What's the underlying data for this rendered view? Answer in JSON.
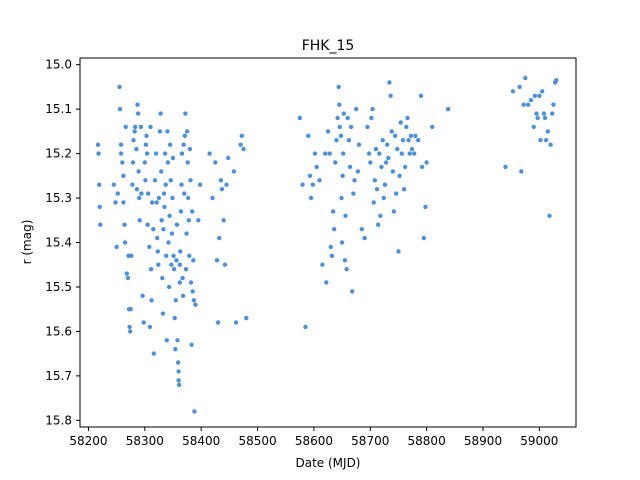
{
  "chart_data": {
    "type": "scatter",
    "title": "FHK_15",
    "xlabel": "Date (MJD)",
    "ylabel": "r (mag)",
    "xlim": [
      58185,
      59065
    ],
    "ylim": [
      15.815,
      14.985
    ],
    "y_inverted": true,
    "grid": false,
    "marker_color": "#4a90e2",
    "x_ticks": [
      58200,
      58300,
      58400,
      58500,
      58600,
      58700,
      58800,
      58900,
      59000
    ],
    "y_ticks": [
      15.0,
      15.1,
      15.2,
      15.3,
      15.4,
      15.5,
      15.6,
      15.7,
      15.8
    ],
    "x_tick_labels": [
      "58200",
      "58300",
      "58400",
      "58500",
      "58600",
      "58700",
      "58800",
      "58900",
      "59000"
    ],
    "y_tick_labels": [
      "15.0",
      "15.1",
      "15.2",
      "15.3",
      "15.4",
      "15.5",
      "15.6",
      "15.7",
      "15.8"
    ],
    "points": [
      [
        58217,
        15.18
      ],
      [
        58218,
        15.2
      ],
      [
        58219,
        15.27
      ],
      [
        58220,
        15.32
      ],
      [
        58221,
        15.36
      ],
      [
        58245,
        15.27
      ],
      [
        58248,
        15.31
      ],
      [
        58250,
        15.41
      ],
      [
        58252,
        15.29
      ],
      [
        58255,
        15.05
      ],
      [
        58256,
        15.1
      ],
      [
        58258,
        15.18
      ],
      [
        58258,
        15.2
      ],
      [
        58260,
        15.22
      ],
      [
        58262,
        15.25
      ],
      [
        58262,
        15.31
      ],
      [
        58264,
        15.36
      ],
      [
        58265,
        15.4
      ],
      [
        58266,
        15.14
      ],
      [
        58268,
        15.47
      ],
      [
        58270,
        15.48
      ],
      [
        58271,
        15.43
      ],
      [
        58272,
        15.55
      ],
      [
        58273,
        15.59
      ],
      [
        58274,
        15.6
      ],
      [
        58275,
        15.55
      ],
      [
        58276,
        15.43
      ],
      [
        58278,
        15.27
      ],
      [
        58279,
        15.22
      ],
      [
        58280,
        15.17
      ],
      [
        58282,
        15.15
      ],
      [
        58283,
        15.14
      ],
      [
        58285,
        15.19
      ],
      [
        58286,
        15.28
      ],
      [
        58287,
        15.09
      ],
      [
        58288,
        15.11
      ],
      [
        58289,
        15.24
      ],
      [
        58290,
        15.3
      ],
      [
        58291,
        15.35
      ],
      [
        58293,
        15.14
      ],
      [
        58294,
        15.29
      ],
      [
        58296,
        15.52
      ],
      [
        58298,
        15.58
      ],
      [
        58300,
        15.22
      ],
      [
        58301,
        15.26
      ],
      [
        58302,
        15.18
      ],
      [
        58303,
        15.16
      ],
      [
        58304,
        15.2
      ],
      [
        58305,
        15.36
      ],
      [
        58306,
        15.29
      ],
      [
        58308,
        15.41
      ],
      [
        58309,
        15.59
      ],
      [
        58310,
        15.14
      ],
      [
        58311,
        15.46
      ],
      [
        58312,
        15.53
      ],
      [
        58313,
        15.31
      ],
      [
        58315,
        15.37
      ],
      [
        58316,
        15.65
      ],
      [
        58318,
        15.26
      ],
      [
        58320,
        15.2
      ],
      [
        58321,
        15.31
      ],
      [
        58322,
        15.39
      ],
      [
        58323,
        15.42
      ],
      [
        58324,
        15.45
      ],
      [
        58325,
        15.3
      ],
      [
        58327,
        15.15
      ],
      [
        58328,
        15.11
      ],
      [
        58329,
        15.24
      ],
      [
        58330,
        15.35
      ],
      [
        58331,
        15.48
      ],
      [
        58332,
        15.56
      ],
      [
        58333,
        15.37
      ],
      [
        58334,
        15.29
      ],
      [
        58335,
        15.32
      ],
      [
        58336,
        15.2
      ],
      [
        58337,
        15.27
      ],
      [
        58338,
        15.43
      ],
      [
        58339,
        15.62
      ],
      [
        58340,
        15.15
      ],
      [
        58341,
        15.22
      ],
      [
        58342,
        15.4
      ],
      [
        58343,
        15.5
      ],
      [
        58344,
        15.34
      ],
      [
        58345,
        15.18
      ],
      [
        58346,
        15.26
      ],
      [
        58347,
        15.45
      ],
      [
        58348,
        15.38
      ],
      [
        58349,
        15.3
      ],
      [
        58350,
        15.21
      ],
      [
        58351,
        15.43
      ],
      [
        58352,
        15.46
      ],
      [
        58353,
        15.57
      ],
      [
        58354,
        15.64
      ],
      [
        58355,
        15.53
      ],
      [
        58356,
        15.44
      ],
      [
        58357,
        15.36
      ],
      [
        58358,
        15.62
      ],
      [
        58359,
        15.67
      ],
      [
        58360,
        15.69
      ],
      [
        58360,
        15.71
      ],
      [
        58361,
        15.72
      ],
      [
        58362,
        15.45
      ],
      [
        58362,
        15.49
      ],
      [
        58363,
        15.42
      ],
      [
        58364,
        15.33
      ],
      [
        58365,
        15.27
      ],
      [
        58366,
        15.2
      ],
      [
        58367,
        15.48
      ],
      [
        58368,
        15.52
      ],
      [
        58369,
        15.18
      ],
      [
        58370,
        15.29
      ],
      [
        58371,
        15.16
      ],
      [
        58372,
        15.11
      ],
      [
        58373,
        15.46
      ],
      [
        58374,
        15.38
      ],
      [
        58375,
        15.15
      ],
      [
        58376,
        15.22
      ],
      [
        58377,
        15.3
      ],
      [
        58378,
        15.35
      ],
      [
        58379,
        15.43
      ],
      [
        58380,
        15.19
      ],
      [
        58381,
        15.26
      ],
      [
        58382,
        15.49
      ],
      [
        58383,
        15.63
      ],
      [
        58384,
        15.33
      ],
      [
        58385,
        15.51
      ],
      [
        58386,
        15.44
      ],
      [
        58387,
        15.53
      ],
      [
        58388,
        15.78
      ],
      [
        58390,
        15.54
      ],
      [
        58395,
        15.35
      ],
      [
        58398,
        15.27
      ],
      [
        58415,
        15.2
      ],
      [
        58420,
        15.3
      ],
      [
        58425,
        15.22
      ],
      [
        58428,
        15.44
      ],
      [
        58430,
        15.58
      ],
      [
        58432,
        15.39
      ],
      [
        58435,
        15.26
      ],
      [
        58437,
        15.28
      ],
      [
        58440,
        15.35
      ],
      [
        58442,
        15.45
      ],
      [
        58445,
        15.27
      ],
      [
        58448,
        15.21
      ],
      [
        58458,
        15.24
      ],
      [
        58462,
        15.58
      ],
      [
        58470,
        15.18
      ],
      [
        58472,
        15.16
      ],
      [
        58475,
        15.19
      ],
      [
        58480,
        15.57
      ],
      [
        58575,
        15.12
      ],
      [
        58580,
        15.27
      ],
      [
        58585,
        15.59
      ],
      [
        58590,
        15.16
      ],
      [
        58593,
        15.25
      ],
      [
        58595,
        15.3
      ],
      [
        58598,
        15.27
      ],
      [
        58602,
        15.2
      ],
      [
        58605,
        15.23
      ],
      [
        58610,
        15.26
      ],
      [
        58615,
        15.45
      ],
      [
        58620,
        15.2
      ],
      [
        58622,
        15.49
      ],
      [
        58625,
        15.15
      ],
      [
        58628,
        15.2
      ],
      [
        58630,
        15.41
      ],
      [
        58632,
        15.43
      ],
      [
        58634,
        15.33
      ],
      [
        58636,
        15.37
      ],
      [
        58638,
        15.22
      ],
      [
        58640,
        15.17
      ],
      [
        58642,
        15.12
      ],
      [
        58644,
        15.05
      ],
      [
        58645,
        15.09
      ],
      [
        58646,
        15.14
      ],
      [
        58648,
        15.16
      ],
      [
        58649,
        15.3
      ],
      [
        58650,
        15.4
      ],
      [
        58651,
        15.25
      ],
      [
        58652,
        15.2
      ],
      [
        58653,
        15.11
      ],
      [
        58655,
        15.44
      ],
      [
        58656,
        15.34
      ],
      [
        58658,
        15.46
      ],
      [
        58660,
        15.12
      ],
      [
        58662,
        15.17
      ],
      [
        58664,
        15.23
      ],
      [
        58666,
        15.14
      ],
      [
        58668,
        15.51
      ],
      [
        58670,
        15.29
      ],
      [
        58672,
        15.26
      ],
      [
        58675,
        15.1
      ],
      [
        58678,
        15.24
      ],
      [
        58680,
        15.18
      ],
      [
        58685,
        15.37
      ],
      [
        58690,
        15.39
      ],
      [
        58695,
        15.14
      ],
      [
        58698,
        15.2
      ],
      [
        58700,
        15.22
      ],
      [
        58702,
        15.12
      ],
      [
        58704,
        15.1
      ],
      [
        58706,
        15.31
      ],
      [
        58708,
        15.26
      ],
      [
        58710,
        15.19
      ],
      [
        58712,
        15.28
      ],
      [
        58714,
        15.36
      ],
      [
        58716,
        15.2
      ],
      [
        58718,
        15.34
      ],
      [
        58720,
        15.23
      ],
      [
        58722,
        15.17
      ],
      [
        58724,
        15.3
      ],
      [
        58726,
        15.27
      ],
      [
        58728,
        15.22
      ],
      [
        58730,
        15.18
      ],
      [
        58732,
        15.21
      ],
      [
        58734,
        15.04
      ],
      [
        58736,
        15.07
      ],
      [
        58738,
        15.15
      ],
      [
        58740,
        15.24
      ],
      [
        58742,
        15.33
      ],
      [
        58744,
        15.16
      ],
      [
        58746,
        15.29
      ],
      [
        58748,
        15.19
      ],
      [
        58750,
        15.42
      ],
      [
        58752,
        15.25
      ],
      [
        58754,
        15.13
      ],
      [
        58756,
        15.2
      ],
      [
        58758,
        15.17
      ],
      [
        58760,
        15.28
      ],
      [
        58762,
        15.23
      ],
      [
        58764,
        15.14
      ],
      [
        58766,
        15.12
      ],
      [
        58768,
        15.17
      ],
      [
        58770,
        15.2
      ],
      [
        58772,
        15.16
      ],
      [
        58774,
        15.19
      ],
      [
        58778,
        15.2
      ],
      [
        58780,
        15.16
      ],
      [
        58785,
        15.17
      ],
      [
        58790,
        15.07
      ],
      [
        58792,
        15.23
      ],
      [
        58795,
        15.39
      ],
      [
        58798,
        15.32
      ],
      [
        58800,
        15.22
      ],
      [
        58810,
        15.14
      ],
      [
        58838,
        15.1
      ],
      [
        58940,
        15.23
      ],
      [
        58953,
        15.06
      ],
      [
        58965,
        15.05
      ],
      [
        58968,
        15.24
      ],
      [
        58972,
        15.09
      ],
      [
        58975,
        15.03
      ],
      [
        58980,
        15.09
      ],
      [
        58985,
        15.08
      ],
      [
        58990,
        15.14
      ],
      [
        58992,
        15.07
      ],
      [
        58995,
        15.11
      ],
      [
        58997,
        15.12
      ],
      [
        59000,
        15.07
      ],
      [
        59002,
        15.17
      ],
      [
        59005,
        15.06
      ],
      [
        59008,
        15.11
      ],
      [
        59010,
        15.12
      ],
      [
        59012,
        15.17
      ],
      [
        59015,
        15.15
      ],
      [
        59018,
        15.34
      ],
      [
        59020,
        15.18
      ],
      [
        59023,
        15.11
      ],
      [
        59025,
        15.09
      ],
      [
        59028,
        15.04
      ],
      [
        59030,
        15.035
      ]
    ]
  }
}
